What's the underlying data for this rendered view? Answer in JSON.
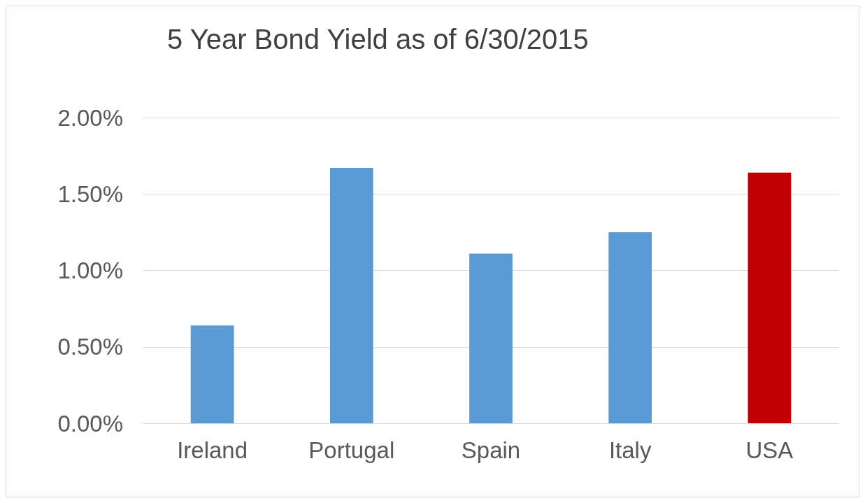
{
  "chart_data": {
    "type": "bar",
    "title": "5 Year Bond Yield as of 6/30/2015",
    "categories": [
      "Ireland",
      "Portugal",
      "Spain",
      "Italy",
      "USA"
    ],
    "values": [
      0.64,
      1.67,
      1.11,
      1.25,
      1.64
    ],
    "colors": [
      "#5b9bd5",
      "#5b9bd5",
      "#5b9bd5",
      "#5b9bd5",
      "#c00000"
    ],
    "ylim": [
      0,
      2
    ],
    "yticks": [
      {
        "value": 0,
        "label": "0.00%"
      },
      {
        "value": 0.5,
        "label": "0.50%"
      },
      {
        "value": 1,
        "label": "1.00%"
      },
      {
        "value": 1.5,
        "label": "1.50%"
      },
      {
        "value": 2,
        "label": "2.00%"
      }
    ],
    "grid": "y"
  }
}
